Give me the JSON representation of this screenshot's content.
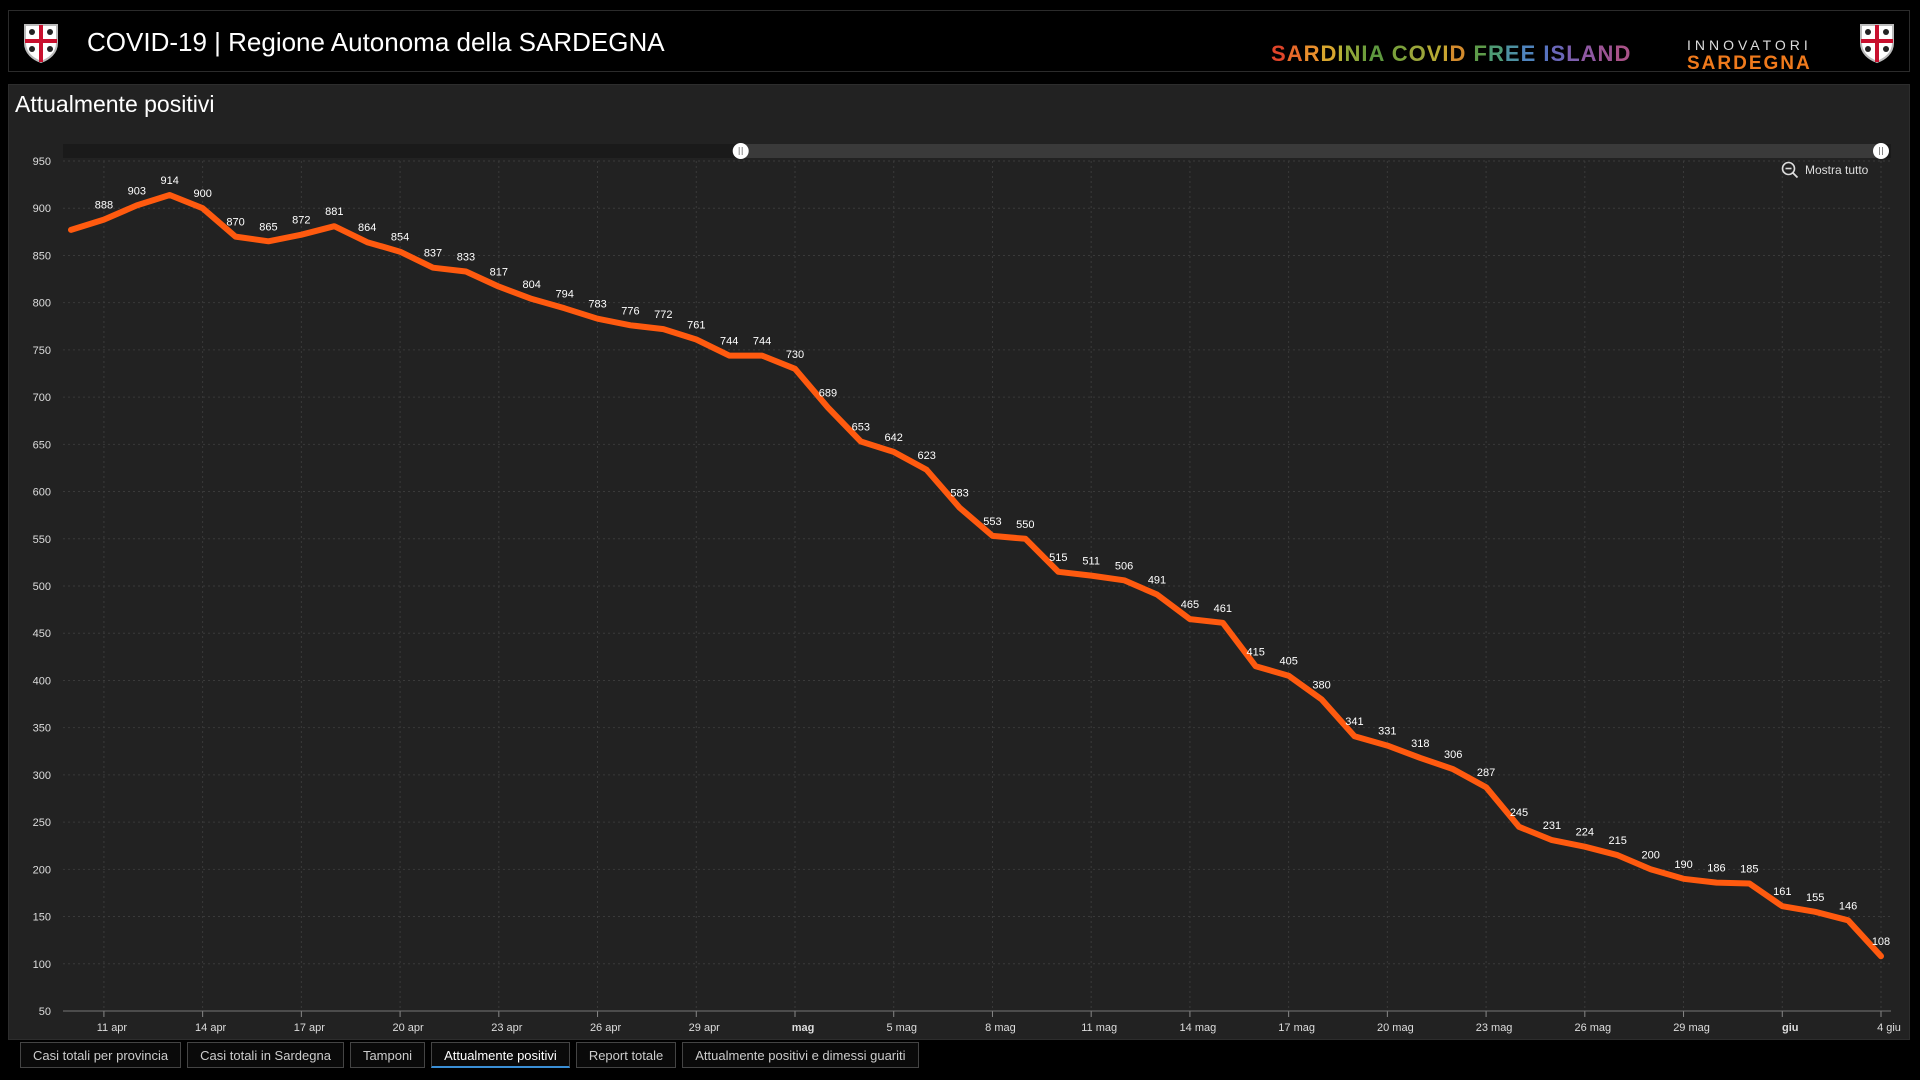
{
  "header": {
    "title": "COVID-19 | Regione Autonoma della SARDEGNA",
    "slogan_letters": [
      "S",
      "A",
      "R",
      "D",
      "I",
      "N",
      "I",
      "A",
      " ",
      "C",
      "O",
      "V",
      "I",
      "D",
      " ",
      "F",
      "R",
      "E",
      "E",
      " ",
      "I",
      "S",
      "L",
      "A",
      "N",
      "D"
    ],
    "slogan_colors": [
      "#e0452a",
      "#e86a2a",
      "#e98e2c",
      "#d8a62e",
      "#b9b035",
      "#8ea73a",
      "#6f9e3c",
      "#5e983f",
      "#ffffff",
      "#7ba03b",
      "#9aa53a",
      "#b6ab35",
      "#c9a430",
      "#d38b2d",
      "#ffffff",
      "#5e9b4a",
      "#4e9a74",
      "#4d91a1",
      "#4f84bd",
      "#ffffff",
      "#5773c0",
      "#6a67b8",
      "#7d5fae",
      "#8f58a2",
      "#9c5494",
      "#a85288"
    ],
    "innovatori_top": "INNOVATORI",
    "innovatori_bottom": "SARDEGNA"
  },
  "panel": {
    "title": "Attualmente positivi",
    "zoom_label": "Mostra tutto"
  },
  "tabs": [
    {
      "label": "Casi totali per provincia",
      "active": false
    },
    {
      "label": "Casi totali in Sardegna",
      "active": false
    },
    {
      "label": "Tamponi",
      "active": false
    },
    {
      "label": "Attualmente positivi",
      "active": true
    },
    {
      "label": "Report totale",
      "active": false
    },
    {
      "label": "Attualmente positivi e dimessi guariti",
      "active": false
    }
  ],
  "colors": {
    "line": "#ff5a0f",
    "grid": "#3a3a3a"
  },
  "chart_data": {
    "type": "line",
    "title": "Attualmente positivi",
    "x": [
      "2020-04-10",
      "2020-04-11",
      "2020-04-12",
      "2020-04-13",
      "2020-04-14",
      "2020-04-15",
      "2020-04-16",
      "2020-04-17",
      "2020-04-18",
      "2020-04-19",
      "2020-04-20",
      "2020-04-21",
      "2020-04-22",
      "2020-04-23",
      "2020-04-24",
      "2020-04-25",
      "2020-04-26",
      "2020-04-27",
      "2020-04-28",
      "2020-04-29",
      "2020-04-30",
      "2020-05-01",
      "2020-05-02",
      "2020-05-03",
      "2020-05-04",
      "2020-05-05",
      "2020-05-06",
      "2020-05-07",
      "2020-05-08",
      "2020-05-09",
      "2020-05-10",
      "2020-05-11",
      "2020-05-12",
      "2020-05-13",
      "2020-05-14",
      "2020-05-15",
      "2020-05-16",
      "2020-05-17",
      "2020-05-18",
      "2020-05-19",
      "2020-05-20",
      "2020-05-21",
      "2020-05-22",
      "2020-05-23",
      "2020-05-24",
      "2020-05-25",
      "2020-05-26",
      "2020-05-27",
      "2020-05-28",
      "2020-05-29",
      "2020-05-30",
      "2020-05-31",
      "2020-06-01",
      "2020-06-02",
      "2020-06-03",
      "2020-06-04"
    ],
    "series": [
      {
        "values": [
          877,
          888,
          903,
          914,
          900,
          870,
          865,
          872,
          881,
          864,
          854,
          837,
          833,
          817,
          804,
          794,
          783,
          776,
          772,
          761,
          744,
          744,
          730,
          689,
          653,
          642,
          623,
          583,
          553,
          550,
          515,
          511,
          506,
          491,
          465,
          461,
          415,
          405,
          380,
          341,
          331,
          318,
          306,
          287,
          245,
          231,
          224,
          215,
          200,
          190,
          186,
          185,
          161,
          155,
          146,
          108
        ],
        "labels": [
          "",
          "888",
          "903",
          "914",
          "900",
          "870",
          "865",
          "872",
          "881",
          "864",
          "854",
          "837",
          "833",
          "817",
          "804",
          "794",
          "783",
          "776",
          "772",
          "761",
          "744",
          "744",
          "730",
          "689",
          "653",
          "642",
          "623",
          "583",
          "553",
          "550",
          "515",
          "511",
          "506",
          "491",
          "465",
          "461",
          "415",
          "405",
          "380",
          "341",
          "331",
          "318",
          "306",
          "287",
          "245",
          "231",
          "224",
          "215",
          "200",
          "190",
          "186",
          "185",
          "161",
          "155",
          "146",
          "108"
        ]
      }
    ],
    "x_ticks": [
      {
        "date": "2020-04-11",
        "label": "11 apr",
        "bold": false
      },
      {
        "date": "2020-04-14",
        "label": "14 apr",
        "bold": false
      },
      {
        "date": "2020-04-17",
        "label": "17 apr",
        "bold": false
      },
      {
        "date": "2020-04-20",
        "label": "20 apr",
        "bold": false
      },
      {
        "date": "2020-04-23",
        "label": "23 apr",
        "bold": false
      },
      {
        "date": "2020-04-26",
        "label": "26 apr",
        "bold": false
      },
      {
        "date": "2020-04-29",
        "label": "29 apr",
        "bold": false
      },
      {
        "date": "2020-05-02",
        "label": "mag",
        "bold": true
      },
      {
        "date": "2020-05-05",
        "label": "5 mag",
        "bold": false
      },
      {
        "date": "2020-05-08",
        "label": "8 mag",
        "bold": false
      },
      {
        "date": "2020-05-11",
        "label": "11 mag",
        "bold": false
      },
      {
        "date": "2020-05-14",
        "label": "14 mag",
        "bold": false
      },
      {
        "date": "2020-05-17",
        "label": "17 mag",
        "bold": false
      },
      {
        "date": "2020-05-20",
        "label": "20 mag",
        "bold": false
      },
      {
        "date": "2020-05-23",
        "label": "23 mag",
        "bold": false
      },
      {
        "date": "2020-05-26",
        "label": "26 mag",
        "bold": false
      },
      {
        "date": "2020-05-29",
        "label": "29 mag",
        "bold": false
      },
      {
        "date": "2020-06-01",
        "label": "giu",
        "bold": true
      },
      {
        "date": "2020-06-04",
        "label": "4 giu",
        "bold": false
      }
    ],
    "y_ticks": [
      50,
      100,
      150,
      200,
      250,
      300,
      350,
      400,
      450,
      500,
      550,
      600,
      650,
      700,
      750,
      800,
      850,
      900,
      950
    ],
    "ylim": [
      50,
      950
    ],
    "xlim": [
      "2020-04-10",
      "2020-06-04"
    ],
    "grid": true,
    "legend": "none",
    "scrollbar_range": [
      0.37,
      1.0
    ]
  }
}
